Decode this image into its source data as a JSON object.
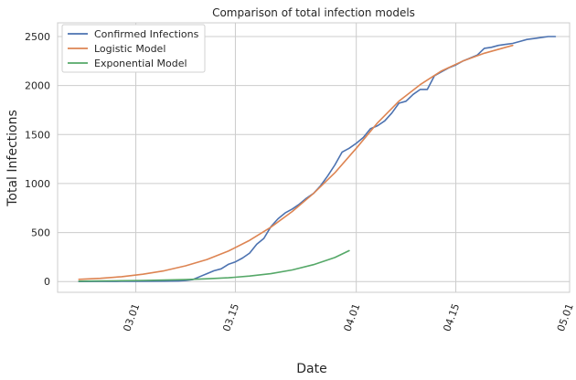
{
  "chart_data": {
    "type": "line",
    "title": "Comparison of total infection models",
    "xlabel": "Date",
    "ylabel": "Total Infections",
    "xlim": [
      "2020-02-19",
      "2020-05-01"
    ],
    "ylim": [
      -110,
      2640
    ],
    "x_ticks": [
      {
        "date": "2020-03-01",
        "label": "03.01"
      },
      {
        "date": "2020-03-15",
        "label": "03.15"
      },
      {
        "date": "2020-04-01",
        "label": "04.01"
      },
      {
        "date": "2020-04-15",
        "label": "04.15"
      },
      {
        "date": "2020-05-01",
        "label": "05.01"
      }
    ],
    "y_ticks": [
      0,
      500,
      1000,
      1500,
      2000,
      2500
    ],
    "grid": true,
    "legend_position": "top-left",
    "series": [
      {
        "name": "Confirmed Infections",
        "color": "#4c72b0",
        "points": [
          [
            "2020-02-22",
            0
          ],
          [
            "2020-02-25",
            1
          ],
          [
            "2020-02-28",
            2
          ],
          [
            "2020-03-02",
            3
          ],
          [
            "2020-03-05",
            4
          ],
          [
            "2020-03-07",
            6
          ],
          [
            "2020-03-08",
            10
          ],
          [
            "2020-03-09",
            20
          ],
          [
            "2020-03-10",
            50
          ],
          [
            "2020-03-11",
            80
          ],
          [
            "2020-03-12",
            110
          ],
          [
            "2020-03-13",
            130
          ],
          [
            "2020-03-14",
            175
          ],
          [
            "2020-03-15",
            200
          ],
          [
            "2020-03-16",
            240
          ],
          [
            "2020-03-17",
            290
          ],
          [
            "2020-03-18",
            380
          ],
          [
            "2020-03-19",
            440
          ],
          [
            "2020-03-20",
            560
          ],
          [
            "2020-03-21",
            640
          ],
          [
            "2020-03-22",
            700
          ],
          [
            "2020-03-23",
            740
          ],
          [
            "2020-03-24",
            790
          ],
          [
            "2020-03-25",
            850
          ],
          [
            "2020-03-26",
            900
          ],
          [
            "2020-03-27",
            980
          ],
          [
            "2020-03-28",
            1080
          ],
          [
            "2020-03-29",
            1190
          ],
          [
            "2020-03-30",
            1320
          ],
          [
            "2020-03-31",
            1360
          ],
          [
            "2020-04-01",
            1410
          ],
          [
            "2020-04-02",
            1470
          ],
          [
            "2020-04-03",
            1560
          ],
          [
            "2020-04-04",
            1590
          ],
          [
            "2020-04-05",
            1640
          ],
          [
            "2020-04-06",
            1720
          ],
          [
            "2020-04-07",
            1820
          ],
          [
            "2020-04-08",
            1840
          ],
          [
            "2020-04-09",
            1910
          ],
          [
            "2020-04-10",
            1960
          ],
          [
            "2020-04-11",
            1960
          ],
          [
            "2020-04-12",
            2100
          ],
          [
            "2020-04-13",
            2140
          ],
          [
            "2020-04-14",
            2180
          ],
          [
            "2020-04-15",
            2210
          ],
          [
            "2020-04-16",
            2250
          ],
          [
            "2020-04-17",
            2280
          ],
          [
            "2020-04-18",
            2310
          ],
          [
            "2020-04-19",
            2380
          ],
          [
            "2020-04-20",
            2390
          ],
          [
            "2020-04-21",
            2410
          ],
          [
            "2020-04-22",
            2420
          ],
          [
            "2020-04-23",
            2430
          ],
          [
            "2020-04-24",
            2450
          ],
          [
            "2020-04-25",
            2470
          ],
          [
            "2020-04-26",
            2480
          ],
          [
            "2020-04-27",
            2490
          ],
          [
            "2020-04-28",
            2500
          ],
          [
            "2020-04-29",
            2500
          ]
        ]
      },
      {
        "name": "Logistic Model",
        "color": "#dd8452",
        "points": [
          [
            "2020-02-22",
            22
          ],
          [
            "2020-02-25",
            33
          ],
          [
            "2020-02-28",
            49
          ],
          [
            "2020-03-02",
            75
          ],
          [
            "2020-03-05",
            110
          ],
          [
            "2020-03-08",
            160
          ],
          [
            "2020-03-11",
            225
          ],
          [
            "2020-03-14",
            310
          ],
          [
            "2020-03-17",
            420
          ],
          [
            "2020-03-20",
            555
          ],
          [
            "2020-03-23",
            715
          ],
          [
            "2020-03-26",
            900
          ],
          [
            "2020-03-29",
            1110
          ],
          [
            "2020-04-01",
            1360
          ],
          [
            "2020-04-04",
            1620
          ],
          [
            "2020-04-07",
            1840
          ],
          [
            "2020-04-10",
            2010
          ],
          [
            "2020-04-13",
            2150
          ],
          [
            "2020-04-16",
            2250
          ],
          [
            "2020-04-19",
            2330
          ],
          [
            "2020-04-22",
            2390
          ],
          [
            "2020-04-23",
            2410
          ]
        ]
      },
      {
        "name": "Exponential Model",
        "color": "#55a868",
        "points": [
          [
            "2020-02-22",
            4
          ],
          [
            "2020-02-25",
            6
          ],
          [
            "2020-02-28",
            8
          ],
          [
            "2020-03-02",
            11
          ],
          [
            "2020-03-05",
            15
          ],
          [
            "2020-03-08",
            20
          ],
          [
            "2020-03-11",
            28
          ],
          [
            "2020-03-14",
            38
          ],
          [
            "2020-03-17",
            56
          ],
          [
            "2020-03-20",
            80
          ],
          [
            "2020-03-23",
            118
          ],
          [
            "2020-03-26",
            172
          ],
          [
            "2020-03-29",
            245
          ],
          [
            "2020-03-31",
            315
          ]
        ]
      }
    ]
  }
}
